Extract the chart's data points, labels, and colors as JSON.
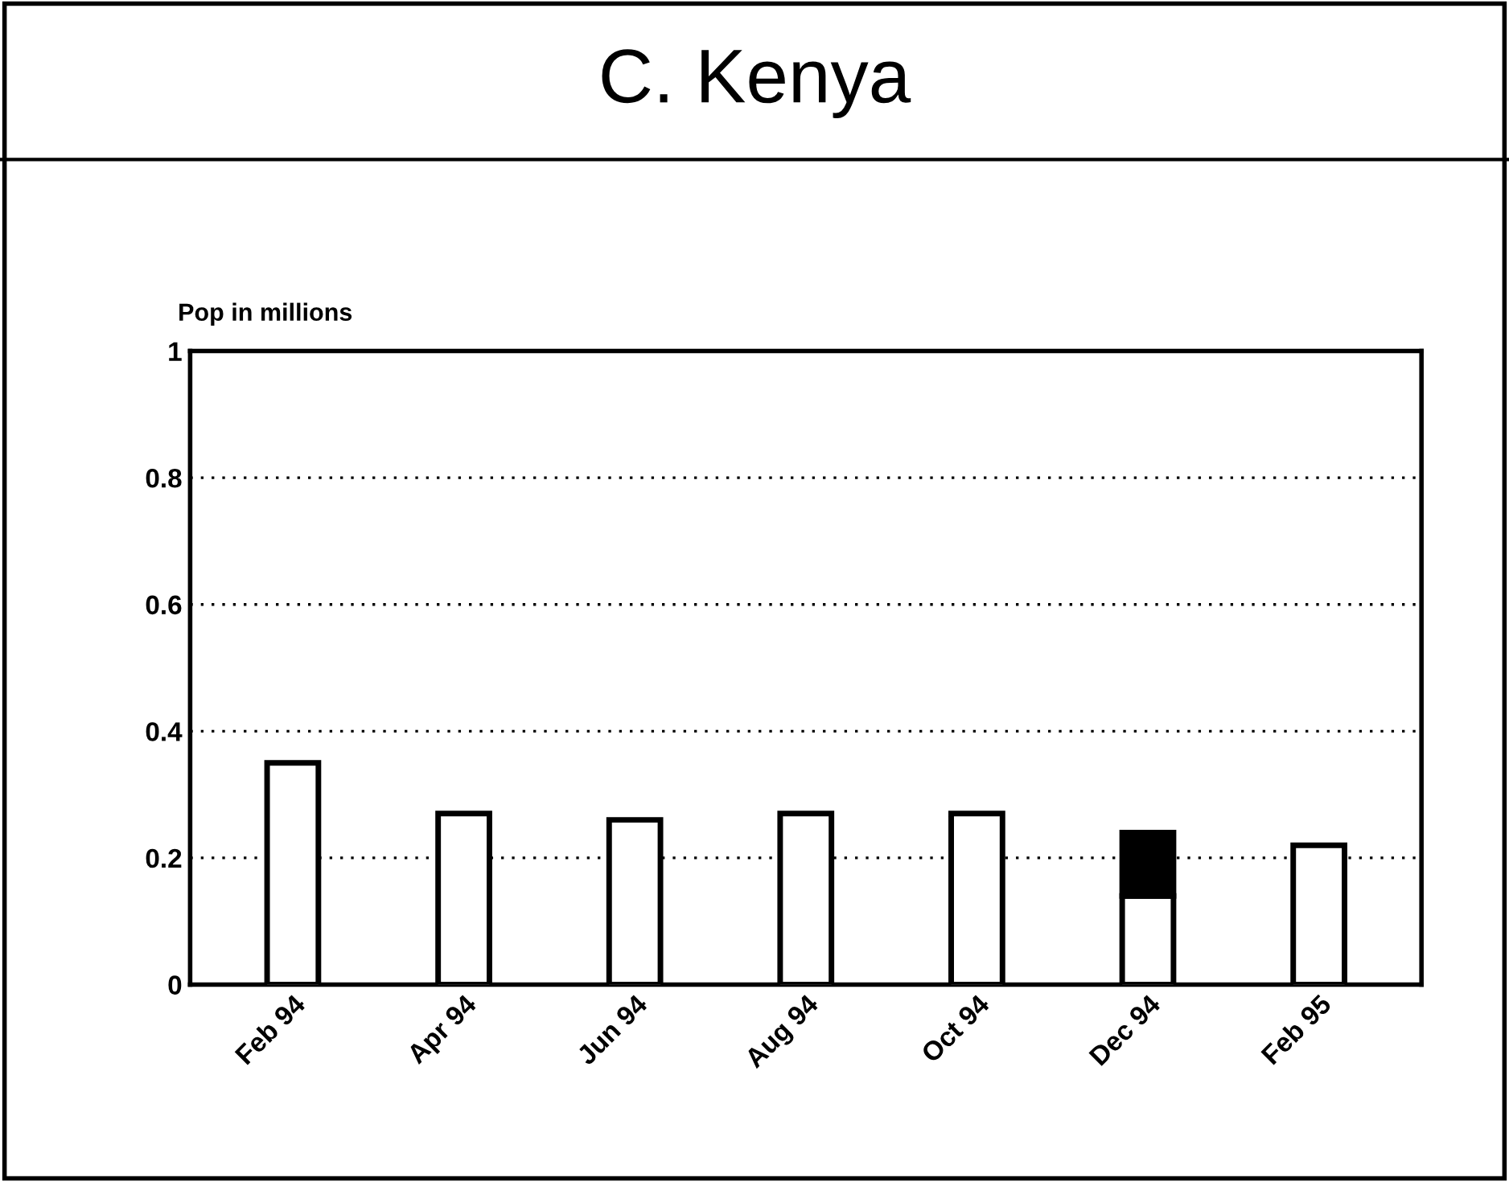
{
  "chart_data": {
    "type": "bar",
    "title": "C. Kenya",
    "ylabel": "Pop in millions",
    "categories": [
      "Feb 94",
      "Apr 94",
      "Jun 94",
      "Aug 94",
      "Oct 94",
      "Dec 94",
      "Feb 95"
    ],
    "stacked": true,
    "series": [
      {
        "color": "#ffffff",
        "values": [
          0.35,
          0.27,
          0.26,
          0.27,
          0.27,
          0.14,
          0.22
        ]
      },
      {
        "color": "#000000",
        "values": [
          null,
          null,
          null,
          null,
          null,
          0.1,
          null
        ]
      }
    ],
    "ylim": [
      0,
      1
    ],
    "yticks": [
      0,
      0.2,
      0.4,
      0.6,
      0.8,
      1
    ],
    "grid": "y",
    "legend": false
  }
}
